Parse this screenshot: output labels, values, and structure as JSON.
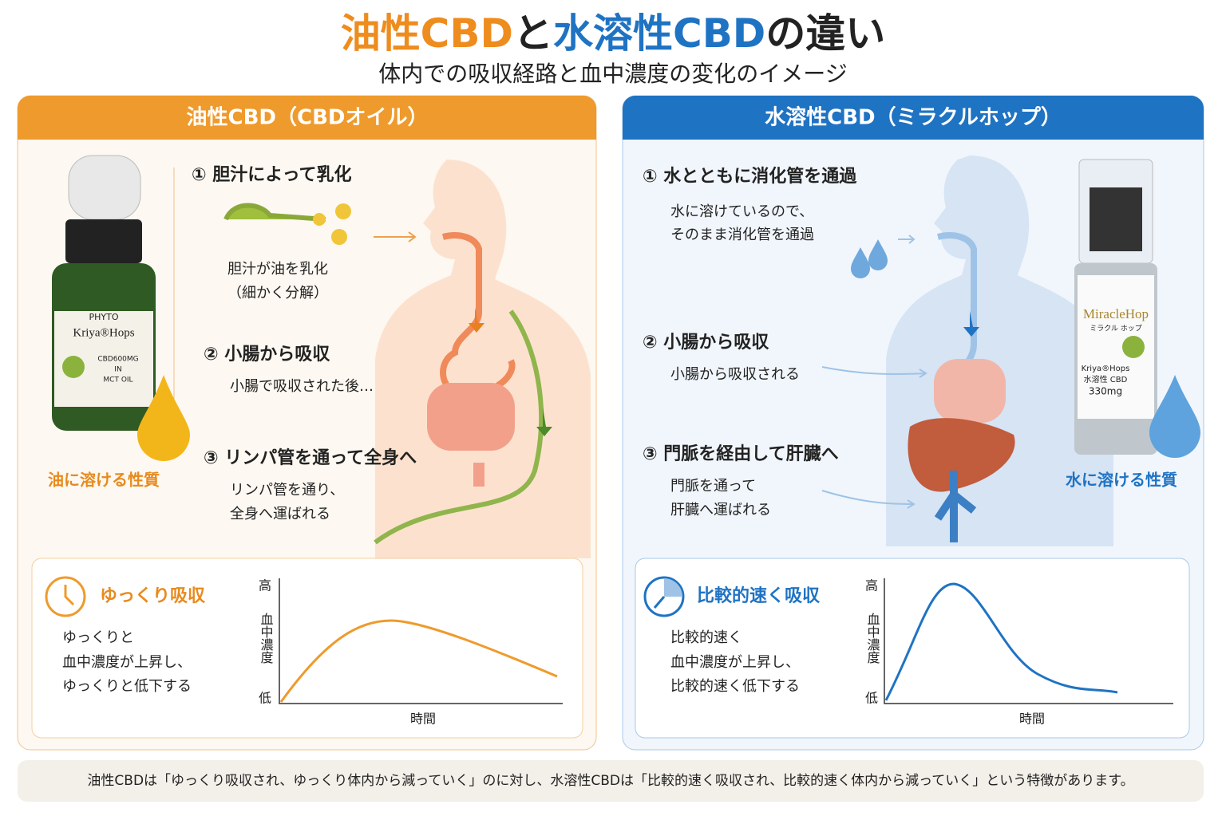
{
  "title": {
    "parts": [
      "油性CBD",
      "と",
      "水溶性CBD",
      "の違い"
    ]
  },
  "subtitle": "体内での吸収経路と血中濃度の変化のイメージ",
  "left_panel": {
    "header": "油性CBD（CBDオイル）",
    "product": [
      "PHYTO",
      "Kriya®Hops",
      "CBD600MG",
      "IN",
      "MCT OIL"
    ],
    "property": "油に溶ける性質",
    "steps": [
      {
        "title": "① 胆汁によって乳化",
        "desc": [
          "胆汁が油を乳化",
          "（細かく分解）"
        ]
      },
      {
        "title": "② 小腸から吸収",
        "desc": [
          "小腸で吸収された後…"
        ]
      },
      {
        "title": "③ リンパ管を通って全身へ",
        "desc": [
          "リンパ管を通り、",
          "全身へ運ばれる"
        ]
      }
    ],
    "summary": {
      "title": "ゆっくり吸収",
      "lines": [
        "ゆっくりと",
        "血中濃度が上昇し、",
        "ゆっくりと低下する"
      ]
    },
    "graph": {
      "y_high": "高",
      "y_label": "血中濃度",
      "y_low": "低",
      "x_label": "時間"
    }
  },
  "right_panel": {
    "header": "水溶性CBD（ミラクルホップ）",
    "product": [
      "MiracleHop",
      "ミラクル ホップ",
      "Kriya®Hops",
      "水溶性 CBD",
      "330mg"
    ],
    "property": "水に溶ける性質",
    "steps": [
      {
        "title": "① 水とともに消化管を通過",
        "desc": [
          "水に溶けているので、",
          "そのまま消化管を通過"
        ]
      },
      {
        "title": "② 小腸から吸収",
        "desc": [
          "小腸から吸収される"
        ]
      },
      {
        "title": "③ 門脈を経由して肝臓へ",
        "desc": [
          "門脈を通って",
          "肝臓へ運ばれる"
        ]
      }
    ],
    "summary": {
      "title": "比較的速く吸収",
      "lines": [
        "比較的速く",
        "血中濃度が上昇し、",
        "比較的速く低下する"
      ]
    },
    "graph": {
      "y_high": "高",
      "y_label": "血中濃度",
      "y_low": "低",
      "x_label": "時間"
    }
  },
  "footer": "油性CBDは「ゆっくり吸収され、ゆっくり体内から減っていく」のに対し、水溶性CBDは「比較的速く吸収され、比較的速く体内から減っていく」という特徴があります。"
}
